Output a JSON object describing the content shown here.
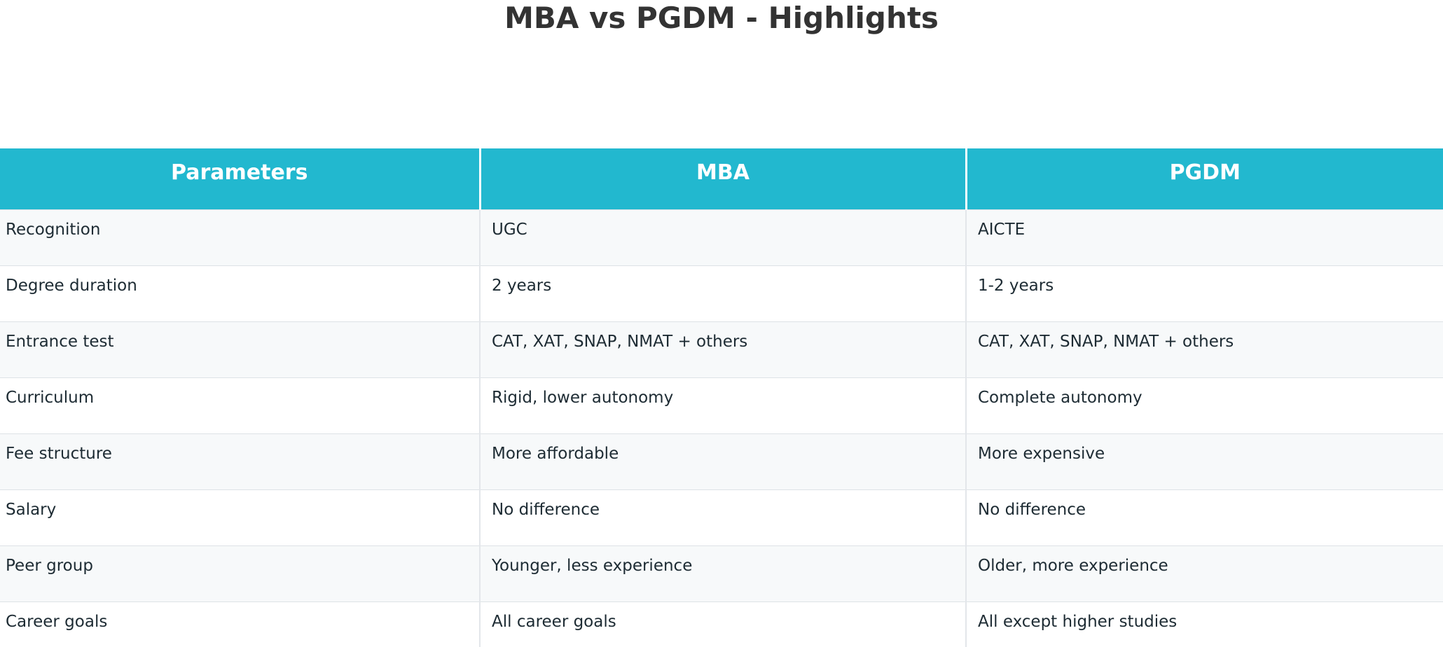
{
  "title": "MBA vs PGDM - Highlights",
  "table": {
    "headers": [
      "Parameters",
      "MBA",
      "PGDM"
    ],
    "rows": [
      [
        "Recognition",
        "UGC",
        "AICTE"
      ],
      [
        "Degree duration",
        "2 years",
        "1-2 years"
      ],
      [
        "Entrance test",
        "CAT, XAT, SNAP, NMAT + others",
        "CAT, XAT, SNAP, NMAT + others"
      ],
      [
        "Curriculum",
        "Rigid, lower autonomy",
        "Complete autonomy"
      ],
      [
        "Fee structure",
        "More affordable",
        "More expensive"
      ],
      [
        "Salary",
        "No difference",
        "No difference"
      ],
      [
        "Peer group",
        "Younger, less experience",
        "Older, more experience"
      ],
      [
        "Career goals",
        "All career goals",
        "All except higher studies"
      ]
    ]
  },
  "colors": {
    "header_bg": "#22b8cf",
    "header_text": "#ffffff",
    "title_text": "#333333",
    "stripe_bg": "#f7f9fa"
  }
}
